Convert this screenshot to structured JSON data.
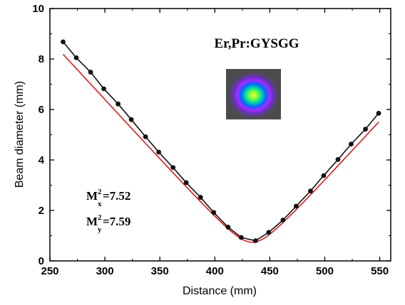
{
  "chart_data": {
    "type": "scatter",
    "xlabel": "Distance (mm)",
    "ylabel": "Beam diameter (mm)",
    "xlim": [
      250,
      560
    ],
    "ylim": [
      0,
      10
    ],
    "xticks": [
      250,
      300,
      350,
      400,
      450,
      500,
      550
    ],
    "yticks": [
      0,
      2,
      4,
      6,
      8,
      10
    ],
    "grid": false,
    "sample_label": "Er,Pr:GYSGG",
    "annotations": {
      "mx": {
        "base": "M",
        "sup": "2",
        "sub": "x",
        "value": "=7.52"
      },
      "my": {
        "base": "M",
        "sup": "2",
        "sub": "y",
        "value": "=7.59"
      }
    },
    "series": [
      {
        "marker": "circle",
        "color": "#111111",
        "x": [
          262,
          274,
          287,
          299,
          312,
          324,
          337,
          349,
          362,
          374,
          387,
          399,
          412,
          424,
          437,
          449,
          462,
          474,
          487,
          499,
          512,
          524,
          537,
          549
        ],
        "y": [
          8.68,
          8.05,
          7.48,
          6.82,
          6.22,
          5.6,
          4.92,
          4.31,
          3.7,
          3.1,
          2.52,
          1.92,
          1.34,
          0.93,
          0.8,
          1.13,
          1.62,
          2.17,
          2.77,
          3.38,
          4.02,
          4.63,
          5.22,
          5.85
        ]
      },
      {
        "type": "line",
        "color": "#e31a1c",
        "fit": {
          "d0": 0.74,
          "z0": 434,
          "slope": 0.0474
        }
      }
    ]
  }
}
